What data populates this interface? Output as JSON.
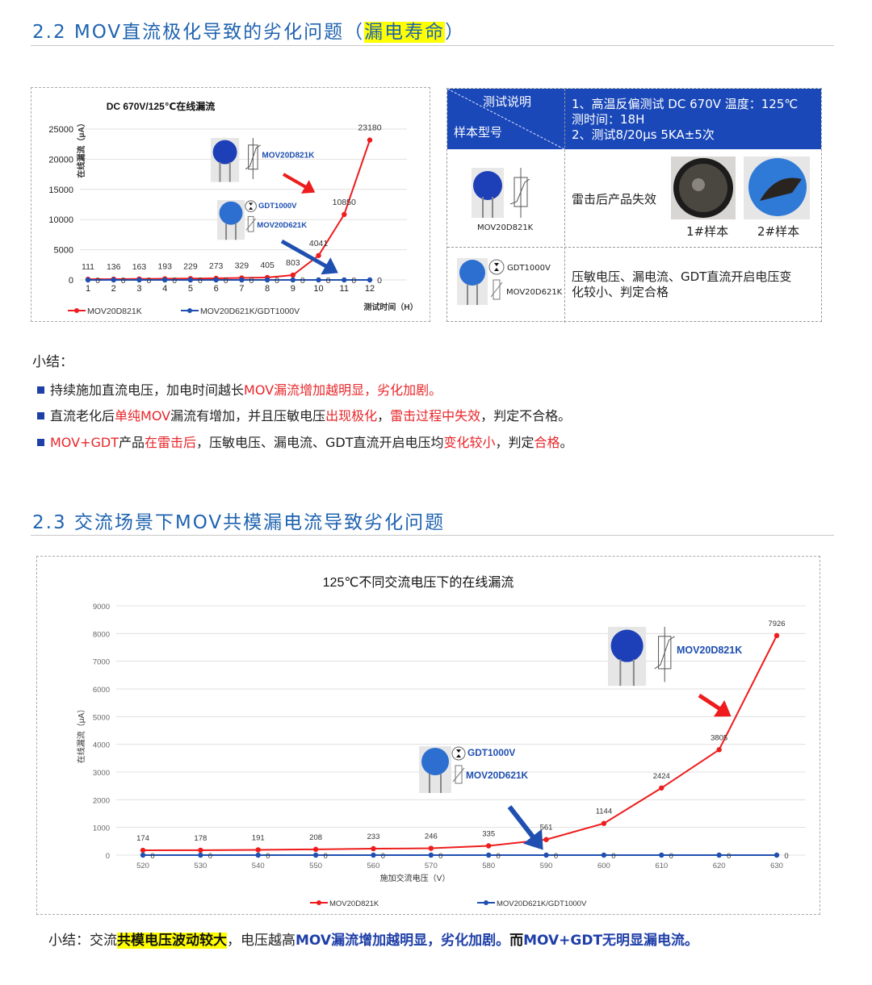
{
  "section1": {
    "heading_prefix": "2.2  MOV直流极化导致的劣化问题（",
    "heading_highlight": "漏电寿命",
    "heading_suffix": "）"
  },
  "chart1": {
    "product_label_1": "MOV20D821K",
    "product_label_2a": "GDT1000V",
    "product_label_2b": "MOV20D621K"
  },
  "table": {
    "header_left_top": "测试说明",
    "header_left_bottom": "样本型号",
    "header_right_lines": [
      "1、高温反偏测试  DC 670V    温度：125℃",
      "测时间：18H",
      "2、测试8/20μs  5KA±5次"
    ],
    "row1_model": "MOV20D821K",
    "row1_result": "雷击后产品失效",
    "row1_sample1": "1#样本",
    "row1_sample2": "2#样本",
    "row2_model_a": "GDT1000V",
    "row2_model_b": "MOV20D621K",
    "row2_result_lines": [
      "压敏电压、漏电流、GDT直流开启电压变",
      "化较小、判定合格"
    ]
  },
  "summary1": {
    "title": "小结：",
    "bullets": [
      [
        {
          "t": "持续施加直流电压，加电时间越长",
          "s": ""
        },
        {
          "t": "MOV漏流增加越明显，劣化加剧。",
          "s": "red"
        }
      ],
      [
        {
          "t": "直流老化后",
          "s": ""
        },
        {
          "t": "单纯MOV",
          "s": "red"
        },
        {
          "t": "漏流有增加，并且压敏电压",
          "s": ""
        },
        {
          "t": "出现极化",
          "s": "red"
        },
        {
          "t": "，",
          "s": ""
        },
        {
          "t": "雷击过程中失效",
          "s": "red"
        },
        {
          "t": "，判定不合格。",
          "s": ""
        }
      ],
      [
        {
          "t": "MOV+GDT",
          "s": "red"
        },
        {
          "t": "产品",
          "s": ""
        },
        {
          "t": "在雷击后",
          "s": "red"
        },
        {
          "t": "，压敏电压、漏电流、GDT直流开启电压均",
          "s": ""
        },
        {
          "t": "变化较小",
          "s": "red"
        },
        {
          "t": "，判定",
          "s": ""
        },
        {
          "t": "合格",
          "s": "red"
        },
        {
          "t": "。",
          "s": ""
        }
      ]
    ]
  },
  "section2": {
    "heading": "2.3  交流场景下MOV共模漏电流导致劣化问题"
  },
  "chart2": {
    "product_label_1": "MOV20D821K",
    "product_label_2a": "GDT1000V",
    "product_label_2b": "MOV20D621K"
  },
  "summary2": [
    {
      "t": "小结：交流",
      "s": ""
    },
    {
      "t": "共模电压波动较大",
      "s": "yel"
    },
    {
      "t": "，电压越高",
      "s": ""
    },
    {
      "t": "MOV漏流增加越明显，劣化加剧。",
      "s": "blue"
    },
    {
      "t": "而",
      "s": "bold"
    },
    {
      "t": "MOV+GDT无明显漏电流。",
      "s": "blue"
    }
  ],
  "colors": {
    "red_series": "#ee1c1c",
    "blue_series": "#1f4fb0",
    "heading": "#1f63b0",
    "table_header": "#1a48b8",
    "highlight": "#ffff00"
  },
  "chart_data": [
    {
      "type": "line",
      "title": "DC 670V/125℃在线漏流",
      "xlabel": "测试时间（H）",
      "ylabel": "在线漏流（μA）",
      "x": [
        1,
        2,
        3,
        4,
        5,
        6,
        7,
        8,
        9,
        10,
        11,
        12
      ],
      "ylim": [
        0,
        25000
      ],
      "yticks": [
        0,
        5000,
        10000,
        15000,
        20000,
        25000
      ],
      "grid": true,
      "legend": "bottom",
      "series": [
        {
          "name": "MOV20D821K",
          "color": "#ee1c1c",
          "values": [
            111,
            136,
            163,
            193,
            229,
            273,
            329,
            405,
            803,
            4041,
            10850,
            23180
          ]
        },
        {
          "name": "MOV20D621K/GDT1000V",
          "color": "#1f4fb0",
          "values": [
            0,
            0,
            0,
            0,
            0,
            0,
            0,
            0,
            0,
            0,
            0,
            0
          ]
        }
      ]
    },
    {
      "type": "line",
      "title": "125℃不同交流电压下的在线漏流",
      "xlabel": "施加交流电压（V）",
      "ylabel": "在线漏流（μA）",
      "x": [
        520,
        530,
        540,
        550,
        560,
        570,
        580,
        590,
        600,
        610,
        620,
        630
      ],
      "ylim": [
        0,
        9000
      ],
      "yticks": [
        0,
        1000,
        2000,
        3000,
        4000,
        5000,
        6000,
        7000,
        8000,
        9000
      ],
      "grid": true,
      "legend": "bottom",
      "series": [
        {
          "name": "MOV20D821K",
          "color": "#ee1c1c",
          "values": [
            174,
            178,
            191,
            208,
            233,
            246,
            335,
            561,
            1144,
            2424,
            3805,
            7926
          ]
        },
        {
          "name": "MOV20D621K/GDT1000V",
          "color": "#1f4fb0",
          "values": [
            0,
            0,
            0,
            0,
            0,
            0,
            0,
            0,
            0,
            0,
            0,
            0
          ]
        }
      ]
    }
  ]
}
